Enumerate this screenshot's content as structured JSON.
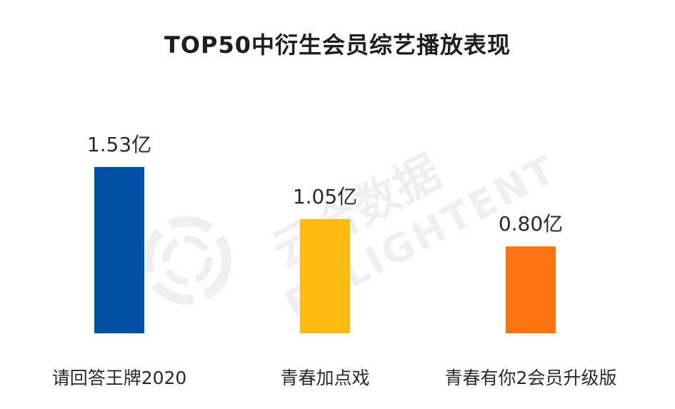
{
  "chart_data": {
    "type": "bar",
    "title": "TOP50中衍生会员综艺播放表现",
    "categories": [
      "请回答王牌2020",
      "青春加点戏",
      "青春有你2会员升级版"
    ],
    "values": [
      1.53,
      1.05,
      0.8
    ],
    "value_labels": [
      "1.53亿",
      "1.05亿",
      "0.80亿"
    ],
    "colors": [
      "#0050a6",
      "#fbbb10",
      "#fc7410"
    ],
    "ylim": [
      0,
      1.53
    ],
    "grid": false,
    "legend": "none"
  },
  "watermark": {
    "cn": "云合数据",
    "en": "ENLIGHTENT"
  }
}
